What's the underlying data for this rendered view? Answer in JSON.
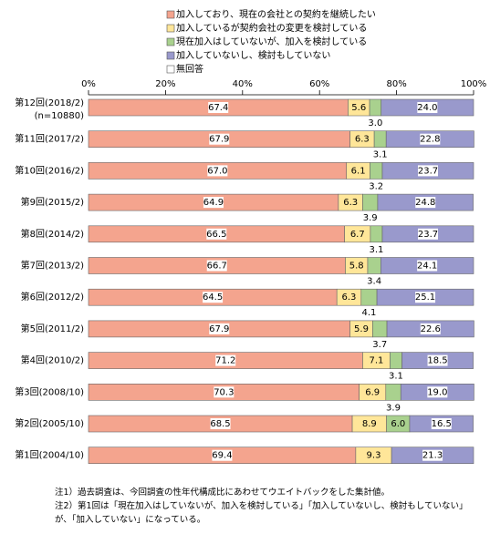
{
  "chart_data": {
    "type": "stacked-bar-horizontal",
    "categories": [
      "第12回(2018/2)",
      "第11回(2017/2)",
      "第10回(2016/2)",
      "第9回(2015/2)",
      "第8回(2014/2)",
      "第7回(2013/2)",
      "第6回(2012/2)",
      "第5回(2011/2)",
      "第4回(2010/2)",
      "第3回(2008/10)",
      "第2回(2005/10)",
      "第1回(2004/10)"
    ],
    "sample_size": "(n=10880)",
    "series": [
      {
        "name": "加入しており、現在の会社との契約を継続したい",
        "color": "#f4a48e",
        "values": [
          67.4,
          67.9,
          67.0,
          64.9,
          66.5,
          66.7,
          64.5,
          67.9,
          71.2,
          70.3,
          68.5,
          69.4
        ],
        "value_labels": [
          "67.4",
          "67.9",
          "67.0",
          "64.9",
          "66.5",
          "66.7",
          "64.5",
          "67.9",
          "71.2",
          "70.3",
          "68.5",
          "69.4"
        ]
      },
      {
        "name": "加入しているが契約会社の変更を検討している",
        "color": "#ffe699",
        "values": [
          5.6,
          6.3,
          6.1,
          6.3,
          6.7,
          5.8,
          6.3,
          5.9,
          7.1,
          6.9,
          8.9,
          9.3
        ],
        "value_labels": [
          "5.6",
          "6.3",
          "6.1",
          "6.3",
          "6.7",
          "5.8",
          "6.3",
          "5.9",
          "7.1",
          "6.9",
          "8.9",
          "9.3"
        ]
      },
      {
        "name": "現在加入はしていないが、加入を検討している",
        "color": "#a9d18e",
        "values": [
          3.0,
          3.1,
          3.2,
          3.9,
          3.1,
          3.4,
          4.1,
          3.7,
          3.1,
          3.9,
          6.0,
          null
        ],
        "value_labels": [
          "3.0",
          "3.1",
          "3.2",
          "3.9",
          "3.1",
          "3.4",
          "4.1",
          "3.7",
          "3.1",
          "3.9",
          "6.0",
          null
        ]
      },
      {
        "name": "加入していないし、検討もしていない",
        "color": "#9999cc",
        "values": [
          24.0,
          22.8,
          23.7,
          24.8,
          23.7,
          24.1,
          25.1,
          22.6,
          18.5,
          19.0,
          16.5,
          21.3
        ],
        "value_labels": [
          "24.0",
          "22.8",
          "23.7",
          "24.8",
          "23.7",
          "24.1",
          "25.1",
          "22.6",
          "18.5",
          "19.0",
          "16.5",
          "21.3"
        ]
      },
      {
        "name": "無回答",
        "color": "#ffffff",
        "values": [
          0,
          0,
          0,
          0,
          0,
          0,
          0,
          0,
          0,
          0,
          0,
          0
        ]
      }
    ],
    "xlim": [
      0,
      100
    ],
    "xticks": [
      {
        "value": 0,
        "label": "0%"
      },
      {
        "value": 20,
        "label": "20%"
      },
      {
        "value": 40,
        "label": "40%"
      },
      {
        "value": 60,
        "label": "60%"
      },
      {
        "value": 80,
        "label": "80%"
      },
      {
        "value": 100,
        "label": "100%"
      }
    ],
    "notes": [
      "注1）過去調査は、今回調査の性年代構成比にあわせてウエイトバックをした集計値。",
      "注2）第1回は「現在加入はしていないが、加入を検討している」「加入していないし、検討もしていない」が、「加入していない」になっている。"
    ]
  }
}
